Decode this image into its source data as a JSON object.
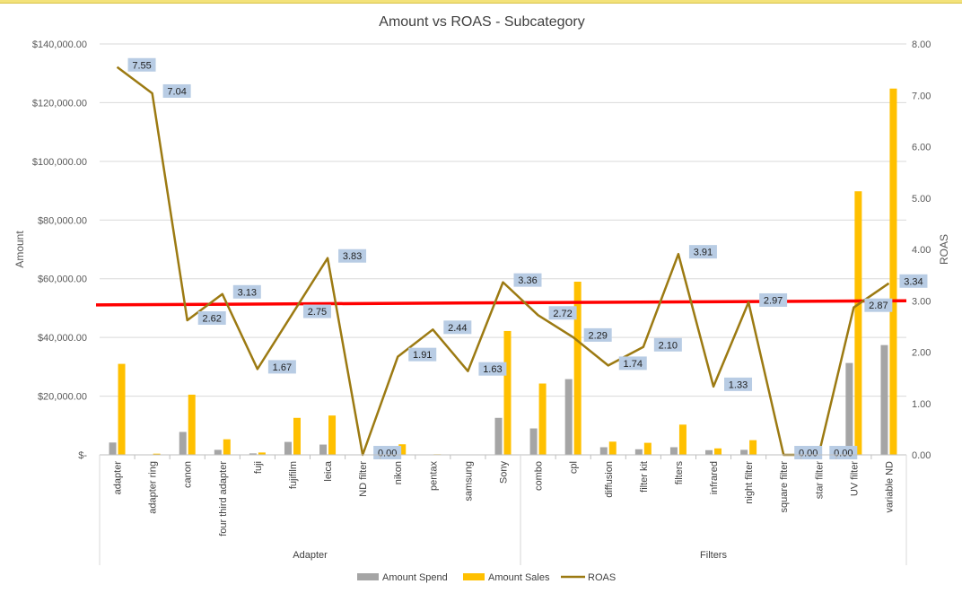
{
  "chart_data": {
    "type": "bar",
    "title": "Amount vs ROAS - Subcategory",
    "ylabel": "Amount",
    "y2label": "ROAS",
    "ylim": [
      0,
      140000
    ],
    "y2lim": [
      0,
      8
    ],
    "yticks": [
      "$-",
      "$20,000.00",
      "$40,000.00",
      "$60,000.00",
      "$80,000.00",
      "$100,000.00",
      "$120,000.00",
      "$140,000.00"
    ],
    "y2ticks": [
      "0.00",
      "1.00",
      "2.00",
      "3.00",
      "4.00",
      "5.00",
      "6.00",
      "7.00",
      "8.00"
    ],
    "categories": [
      "adapter",
      "adapter ring",
      "canon",
      "four third adapter",
      "fuji",
      "fujifilm",
      "leica",
      "ND filter",
      "nikon",
      "pentax",
      "samsung",
      "Sony",
      "combo",
      "cpl",
      "diffusion",
      "filter kit",
      "filters",
      "infrared",
      "night filter",
      "square filter",
      "star filter",
      "UV filter",
      "variable ND"
    ],
    "groups": [
      {
        "label": "Adapter",
        "start": 0,
        "end": 11
      },
      {
        "label": "Filters",
        "start": 12,
        "end": 22
      }
    ],
    "series": [
      {
        "name": "Amount Spend",
        "type": "bar",
        "axis": "left",
        "color": "#a5a5a5",
        "values": [
          4200,
          0,
          7800,
          1700,
          500,
          4400,
          3500,
          0,
          1900,
          0,
          0,
          12600,
          9000,
          25800,
          2600,
          1900,
          2600,
          1600,
          1700,
          0,
          0,
          31300,
          37400
        ]
      },
      {
        "name": "Amount Sales",
        "type": "bar",
        "axis": "left",
        "color": "#ffc000",
        "values": [
          31000,
          400,
          20500,
          5300,
          800,
          12600,
          13400,
          0,
          3600,
          200,
          0,
          42200,
          24300,
          59000,
          4500,
          4100,
          10300,
          2200,
          5000,
          0,
          0,
          89800,
          124800
        ]
      },
      {
        "name": "ROAS",
        "type": "line",
        "axis": "right",
        "color": "#9c7a12",
        "values": [
          7.55,
          7.04,
          2.62,
          3.13,
          1.67,
          2.75,
          3.83,
          0.0,
          1.91,
          2.44,
          1.63,
          3.36,
          2.72,
          2.29,
          1.74,
          2.1,
          3.91,
          1.33,
          2.97,
          0.0,
          0.0,
          2.87,
          3.34
        ]
      }
    ],
    "roas_labels": [
      "7.55",
      "7.04",
      "2.62",
      "3.13",
      "1.67",
      "2.75",
      "3.83",
      "0.00",
      "1.91",
      "2.44",
      "1.63",
      "3.36",
      "2.72",
      "2.29",
      "1.74",
      "2.10",
      "3.91",
      "1.33",
      "2.97",
      "0.00",
      "0.00",
      "2.87",
      "3.34"
    ],
    "reference_line": {
      "axis": "right",
      "from": 2.92,
      "to": 3.0,
      "color": "#ff0000"
    },
    "legend": {
      "position": "bottom",
      "entries": [
        "Amount Spend",
        "Amount Sales",
        "ROAS"
      ]
    },
    "grid": true
  }
}
